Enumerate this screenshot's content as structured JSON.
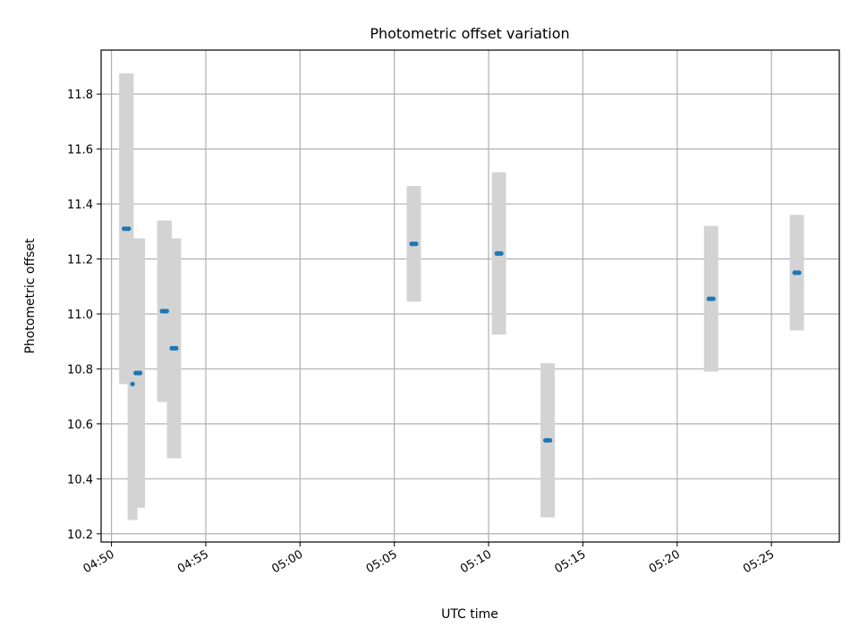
{
  "chart_data": {
    "type": "scatter",
    "title": "Photometric offset variation",
    "xlabel": "UTC time",
    "ylabel": "Photometric offset",
    "x_range_minutes": [
      -0.55,
      38.6
    ],
    "x_ticks": [
      {
        "label": "04:50",
        "minute": 0
      },
      {
        "label": "04:55",
        "minute": 5
      },
      {
        "label": "05:00",
        "minute": 10
      },
      {
        "label": "05:05",
        "minute": 15
      },
      {
        "label": "05:10",
        "minute": 20
      },
      {
        "label": "05:15",
        "minute": 25
      },
      {
        "label": "05:20",
        "minute": 30
      },
      {
        "label": "05:25",
        "minute": 35
      }
    ],
    "x_origin_label": "04:50",
    "ylim": [
      10.17,
      11.96
    ],
    "y_ticks": [
      {
        "label": "10.2",
        "value": 10.2
      },
      {
        "label": "10.4",
        "value": 10.4
      },
      {
        "label": "10.6",
        "value": 10.6
      },
      {
        "label": "10.8",
        "value": 10.8
      },
      {
        "label": "11.0",
        "value": 11.0
      },
      {
        "label": "11.2",
        "value": 11.2
      },
      {
        "label": "11.4",
        "value": 11.4
      },
      {
        "label": "11.6",
        "value": 11.6
      },
      {
        "label": "11.8",
        "value": 11.8
      }
    ],
    "grid": true,
    "marker_color": "#1f77b4",
    "errorbar_color": "#d3d3d3",
    "points": [
      {
        "time": "04:50:40",
        "y": 11.31,
        "err": 0.565
      },
      {
        "time": "04:50:48",
        "y": 11.31,
        "err": 0.565
      },
      {
        "time": "04:50:55",
        "y": 11.31,
        "err": 0.565
      },
      {
        "time": "04:51:07",
        "y": 10.745,
        "err": 0.495
      },
      {
        "time": "04:51:17",
        "y": 10.785,
        "err": 0.49
      },
      {
        "time": "04:51:24",
        "y": 10.785,
        "err": 0.49
      },
      {
        "time": "04:51:31",
        "y": 10.785,
        "err": 0.49
      },
      {
        "time": "04:52:41",
        "y": 11.01,
        "err": 0.33
      },
      {
        "time": "04:52:49",
        "y": 11.01,
        "err": 0.33
      },
      {
        "time": "04:52:56",
        "y": 11.01,
        "err": 0.33
      },
      {
        "time": "04:53:12",
        "y": 10.875,
        "err": 0.4
      },
      {
        "time": "04:53:19",
        "y": 10.875,
        "err": 0.4
      },
      {
        "time": "04:53:26",
        "y": 10.875,
        "err": 0.4
      },
      {
        "time": "05:05:55",
        "y": 11.255,
        "err": 0.21
      },
      {
        "time": "05:06:02",
        "y": 11.255,
        "err": 0.21
      },
      {
        "time": "05:06:09",
        "y": 11.255,
        "err": 0.21
      },
      {
        "time": "05:10:26",
        "y": 11.22,
        "err": 0.295
      },
      {
        "time": "05:10:33",
        "y": 11.22,
        "err": 0.295
      },
      {
        "time": "05:10:40",
        "y": 11.22,
        "err": 0.295
      },
      {
        "time": "05:13:01",
        "y": 10.54,
        "err": 0.28
      },
      {
        "time": "05:13:08",
        "y": 10.54,
        "err": 0.28
      },
      {
        "time": "05:13:15",
        "y": 10.54,
        "err": 0.28
      },
      {
        "time": "05:21:41",
        "y": 11.055,
        "err": 0.265
      },
      {
        "time": "05:21:48",
        "y": 11.055,
        "err": 0.265
      },
      {
        "time": "05:21:55",
        "y": 11.055,
        "err": 0.265
      },
      {
        "time": "05:26:14",
        "y": 11.15,
        "err": 0.21
      },
      {
        "time": "05:26:21",
        "y": 11.15,
        "err": 0.21
      },
      {
        "time": "05:26:28",
        "y": 11.15,
        "err": 0.21
      }
    ]
  }
}
